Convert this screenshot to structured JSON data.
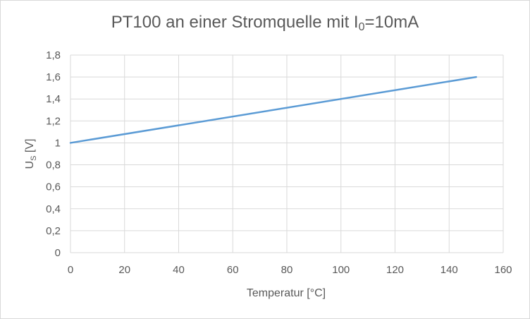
{
  "chart_data": {
    "type": "line",
    "title": {
      "main": "PT100 an einer Stromquelle mit I",
      "subscript": "0",
      "suffix": "=10mA"
    },
    "xlabel": "Temperatur [°C]",
    "ylabel": {
      "main": "U",
      "subscript": "S",
      "suffix": " [V]"
    },
    "xlim": [
      0,
      160
    ],
    "ylim": [
      0,
      1.8
    ],
    "x_ticks": [
      "0",
      "20",
      "40",
      "60",
      "80",
      "100",
      "120",
      "140",
      "160"
    ],
    "y_ticks": [
      "0",
      "0,2",
      "0,4",
      "0,6",
      "0,8",
      "1",
      "1,2",
      "1,4",
      "1,6",
      "1,8"
    ],
    "grid": true,
    "legend": "none",
    "series": [
      {
        "color": "#5b9bd5",
        "points": [
          [
            0,
            1.0
          ],
          [
            150,
            1.6
          ]
        ]
      }
    ]
  }
}
